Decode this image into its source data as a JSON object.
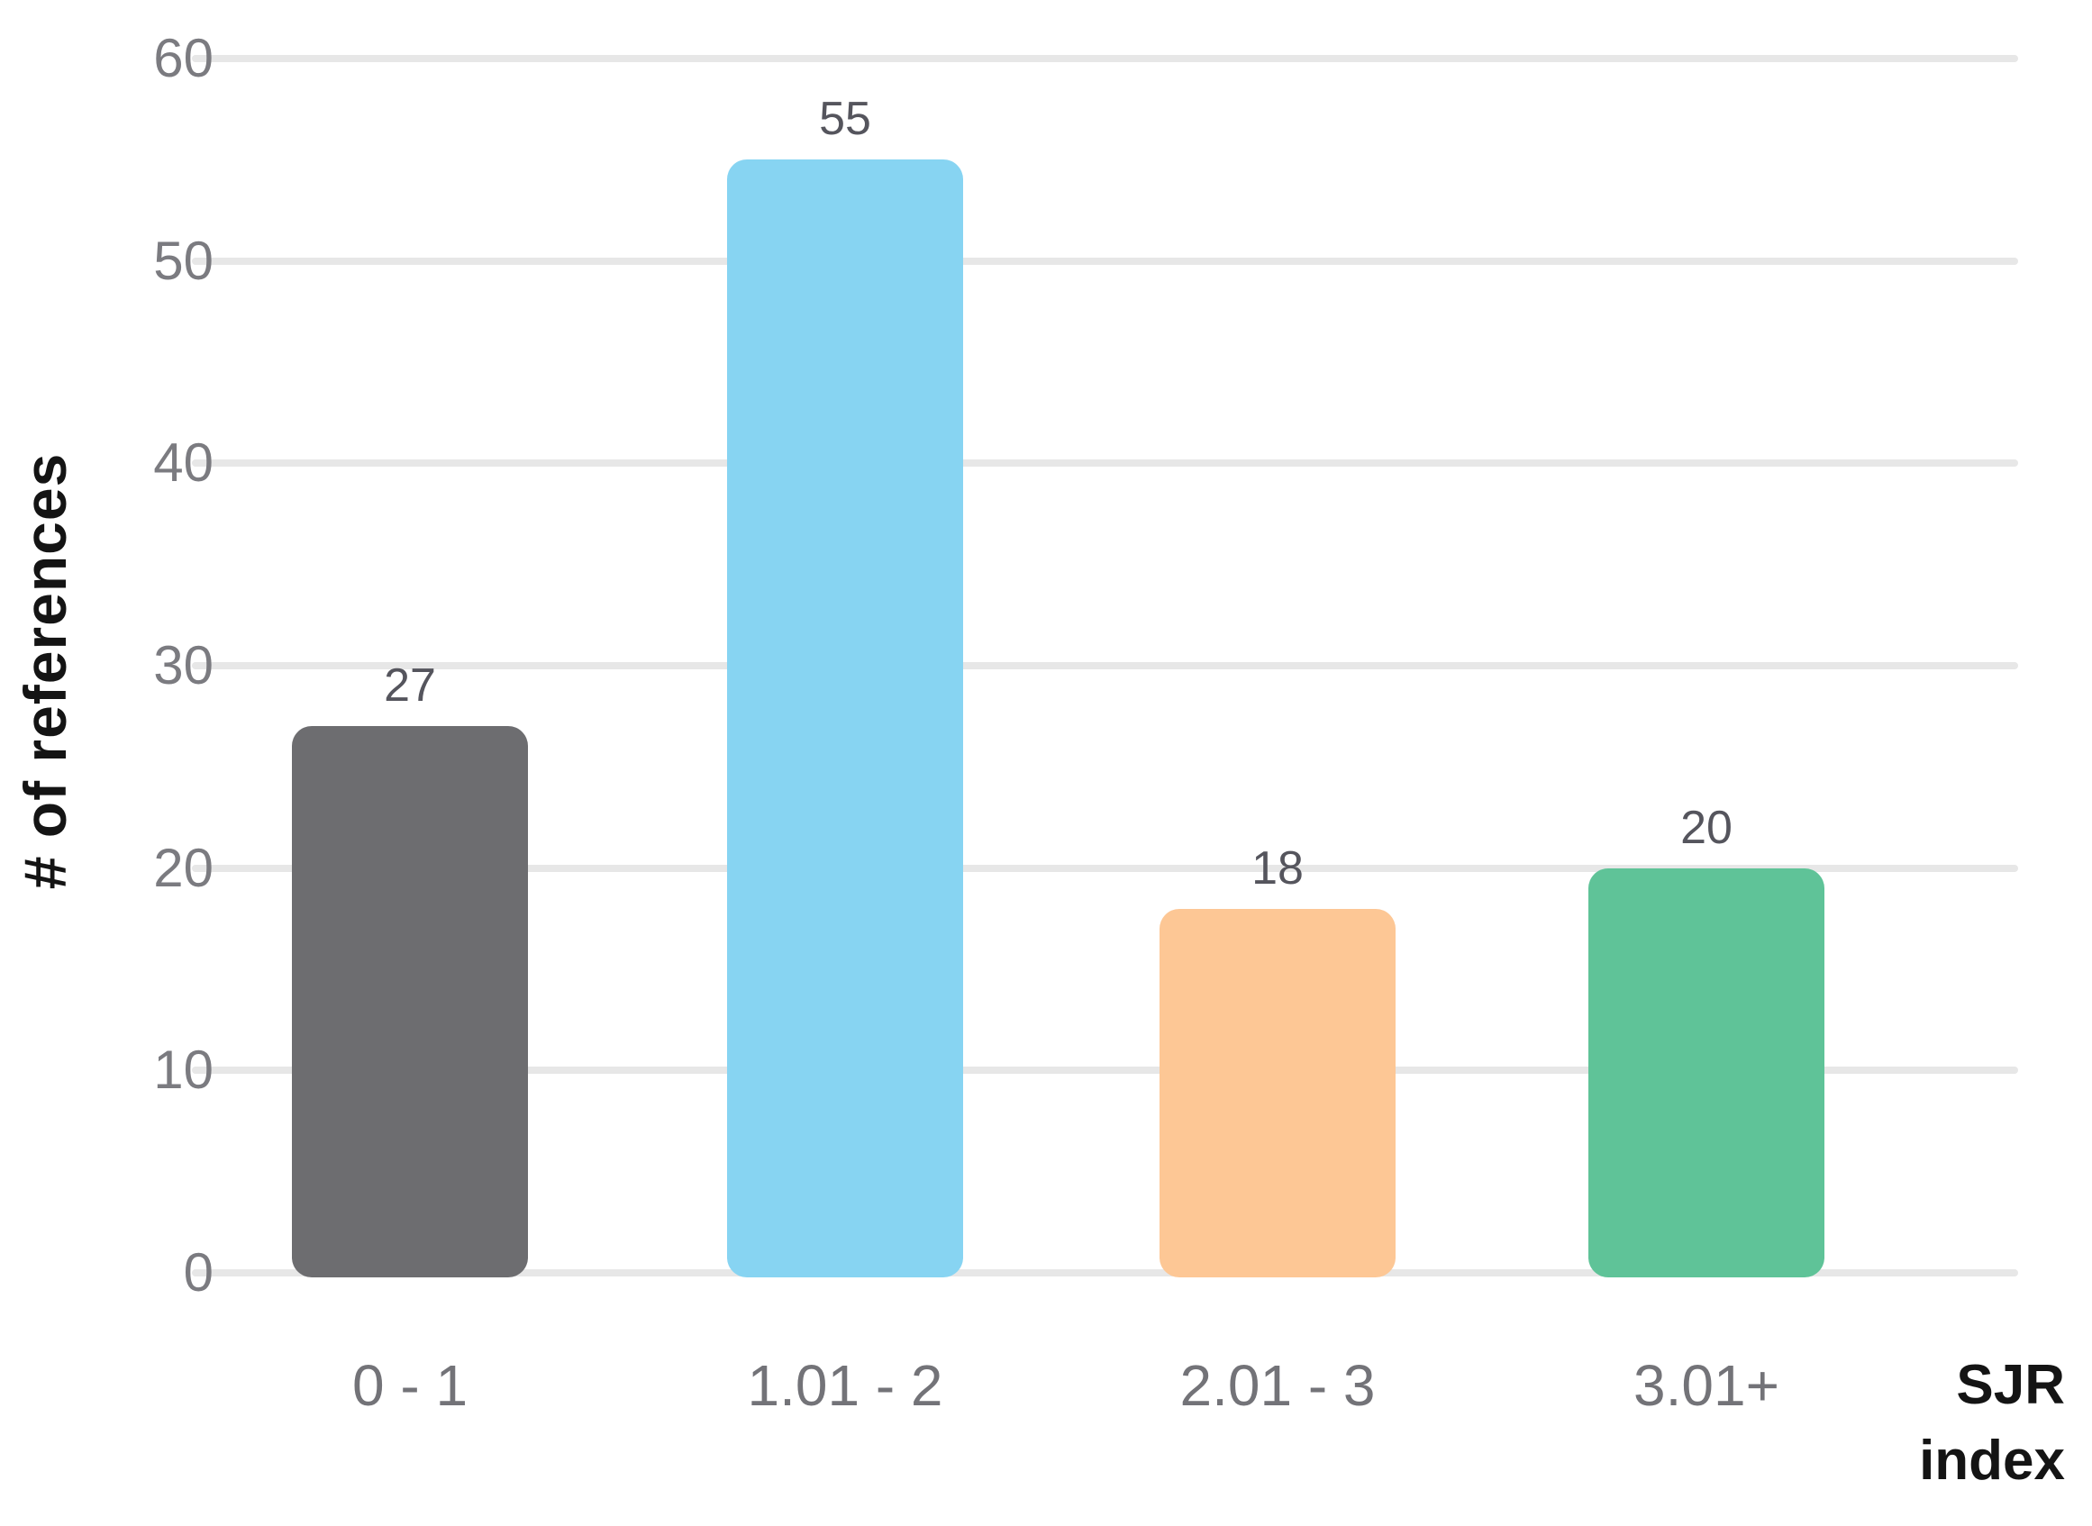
{
  "chart_data": {
    "type": "bar",
    "title": "",
    "categories": [
      "0 - 1",
      "1.01 - 2",
      "2.01 - 3",
      "3.01+"
    ],
    "values": [
      27,
      55,
      18,
      20
    ],
    "data_labels": [
      "27",
      "55",
      "18",
      "20"
    ],
    "series_colors": [
      "#6d6d70",
      "#87d4f2",
      "#fdc795",
      "#5fc398"
    ],
    "xlabel": "SJR index",
    "xlabel_lines": [
      "SJR",
      "index"
    ],
    "ylabel": "# of references",
    "ylim": [
      0,
      60
    ],
    "ytick_step": 10,
    "yticks": [
      "0",
      "10",
      "20",
      "30",
      "40",
      "50",
      "60"
    ],
    "grid": true,
    "legend": false
  },
  "colors": {
    "background": "#ffffff",
    "gridline": "#e7e7e7",
    "tick_label": "#7b7b80",
    "category_label": "#737378",
    "value_label": "#55555d",
    "axis_title": "#141414"
  }
}
